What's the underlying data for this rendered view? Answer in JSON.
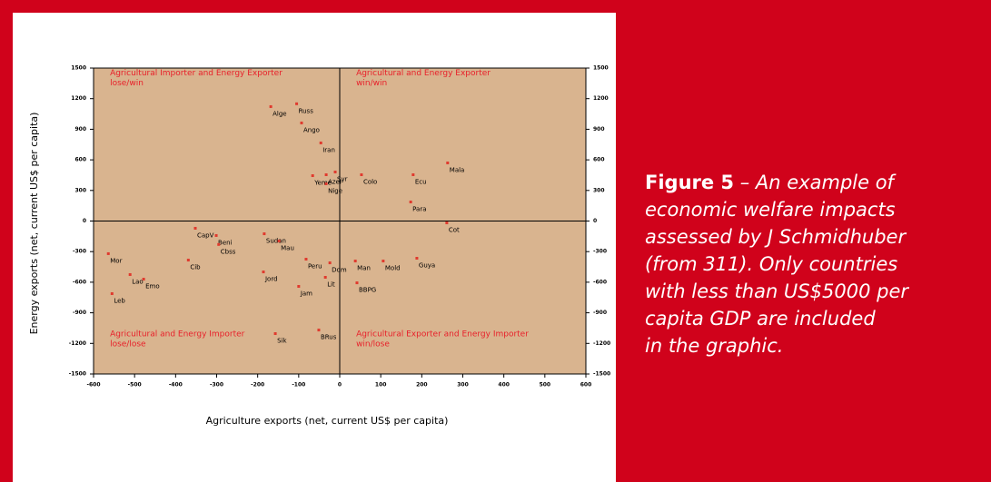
{
  "chart_data": {
    "type": "scatter",
    "x_label": "Agriculture exports (net, current US$ per capita)",
    "y_label": "Energy exports (net, current US$ per capita)",
    "xlim": [
      -600,
      600
    ],
    "ylim": [
      -1500,
      1500
    ],
    "xticks": [
      -600,
      -500,
      -400,
      -300,
      -200,
      -100,
      0,
      100,
      200,
      300,
      400,
      500,
      600
    ],
    "yticks": [
      -1500,
      -1200,
      -900,
      -600,
      -300,
      0,
      300,
      600,
      900,
      1200,
      1500
    ],
    "color": "#e03a2e",
    "plot_color": "#d9b48f",
    "annotations": [
      {
        "lines": [
          "Agricultural Importer and Energy Exporter",
          "lose/win"
        ],
        "x": -560,
        "y": 1450
      },
      {
        "lines": [
          "Agricultural and Energy Exporter",
          "win/win"
        ],
        "x": 40,
        "y": 1450
      },
      {
        "lines": [
          "Agricultural and Energy Importer",
          "lose/lose"
        ],
        "x": -560,
        "y": -1110
      },
      {
        "lines": [
          "Agricultural Exporter and Energy Importer",
          "win/lose"
        ],
        "x": 40,
        "y": -1110
      }
    ],
    "labels": [
      "Russ",
      "Alge",
      "Ango",
      "Iran",
      "Mala",
      "Ecu",
      "Colo",
      "Syr",
      "Yeme",
      "Azer",
      "Nige",
      "Para",
      "Cot",
      "CapV",
      "Beni",
      "Cbss",
      "Mor",
      "Cib",
      "Leb",
      "Lao",
      "Emo",
      "Jord",
      "Jam",
      "Lit",
      "Sik",
      "BRus",
      "Mold",
      "Guya",
      "Sudan",
      "Mau",
      "Peru",
      "Dom",
      "BBPG",
      "Man"
    ],
    "x": [
      -105,
      -168,
      -93,
      -46,
      263,
      179,
      53,
      -11,
      -66,
      -33,
      -33,
      173,
      261,
      -352,
      -301,
      -295,
      -564,
      -369,
      -555,
      -511,
      -478,
      -186,
      -100,
      -35,
      -157,
      -51,
      106,
      188,
      -184,
      -148,
      -82,
      -24,
      42,
      38
    ],
    "values": [
      1150,
      1122,
      962,
      766,
      570,
      454,
      454,
      481,
      445,
      454,
      365,
      187,
      -18,
      -71,
      -142,
      -230,
      -320,
      -383,
      -712,
      -525,
      -570,
      -499,
      -641,
      -552,
      -1104,
      -1069,
      -392,
      -365,
      -125,
      -196,
      -374,
      -410,
      -606,
      -392
    ]
  },
  "caption": {
    "label": "Figure 5",
    "lines": [
      "– An example of",
      "economic welfare impacts",
      "assessed by J Schmidhuber",
      "(from 311).  Only countries",
      "with less than US$5000 per",
      "capita GDP are included",
      "in the graphic."
    ]
  }
}
